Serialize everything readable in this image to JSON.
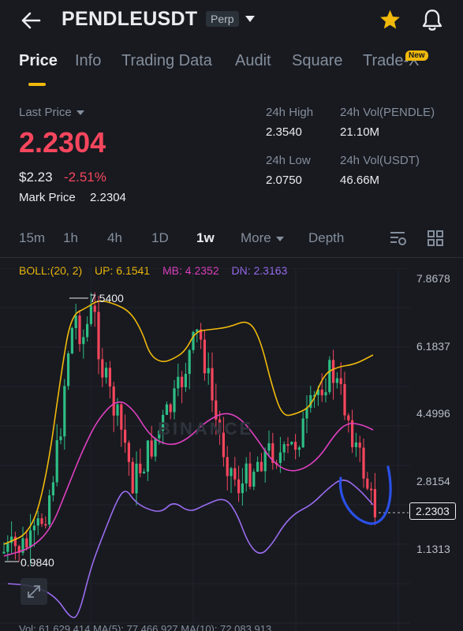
{
  "header": {
    "symbol": "PENDLEUSDT",
    "badge": "Perp",
    "icons": [
      "back-arrow-icon",
      "chevron-down-icon",
      "star-icon",
      "bell-icon"
    ],
    "accent_color": "#f0b90b"
  },
  "tabs": [
    {
      "label": "Price",
      "active": true
    },
    {
      "label": "Info"
    },
    {
      "label": "Trading Data"
    },
    {
      "label": "Audit"
    },
    {
      "label": "Square"
    },
    {
      "label": "Trade-X"
    }
  ],
  "new_badge": "New",
  "stats": {
    "last_price_label": "Last Price",
    "last_price": "2.2304",
    "usd_price": "$2.23",
    "change_pct": "-2.51%",
    "mark_price_label": "Mark Price",
    "mark_price": "2.2304",
    "high_label": "24h High",
    "high": "2.3540",
    "low_label": "24h Low",
    "low": "2.0750",
    "vol_base_label": "24h Vol(PENDLE)",
    "vol_base": "21.10M",
    "vol_quote_label": "24h Vol(USDT)",
    "vol_quote": "46.66M",
    "down_color": "#f6465d"
  },
  "intervals": [
    "15m",
    "1h",
    "4h",
    "1D",
    "1w",
    "More",
    "Depth"
  ],
  "active_interval": "1w",
  "boll": {
    "params": "BOLL:(20, 2)",
    "up": "UP: 6.1541",
    "mb": "MB: 4.2352",
    "dn": "DN: 2.3163"
  },
  "chart": {
    "y_labels": [
      "7.8678",
      "6.1837",
      "4.4996",
      "2.8154",
      "1.1313"
    ],
    "current_price_tag": "2.2303",
    "high_marker": "7.5400",
    "low_marker": "0.9840",
    "watermark": "BINANCE",
    "up_color": "#2ebd85",
    "down_color": "#f6465d",
    "up_band_color": "#f0b90b",
    "mid_band_color": "#e040c0",
    "dn_band_color": "#9b6cf0"
  },
  "volume_line": "Vol: 61,629,414   MA(5): 77,466,927   MA(10): 72,083,913"
}
